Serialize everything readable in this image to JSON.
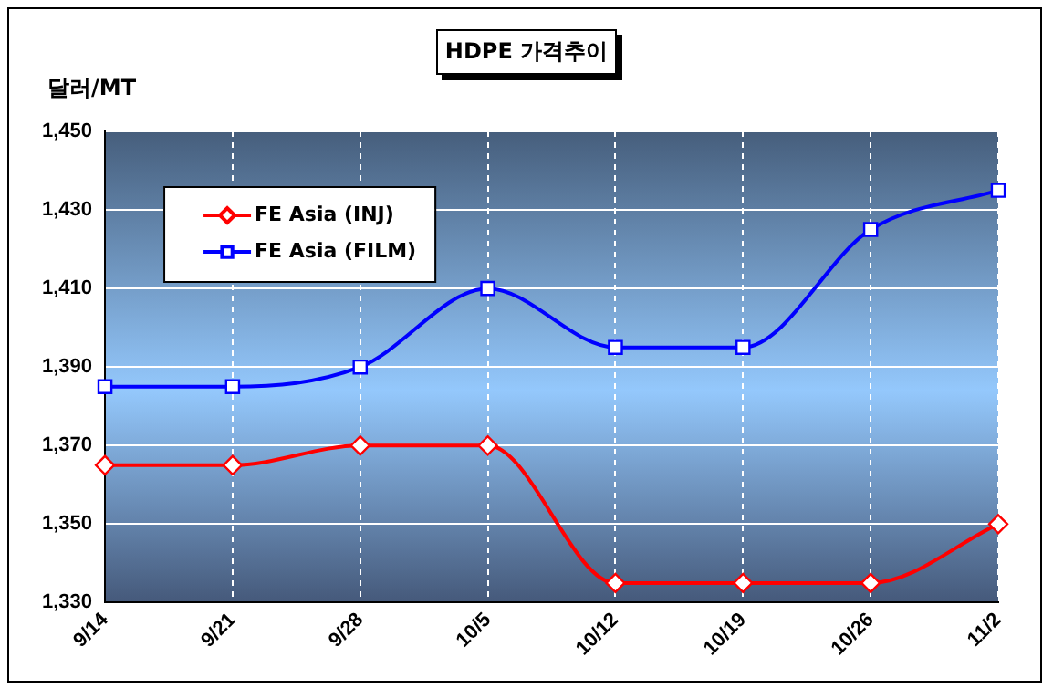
{
  "chart_data": {
    "type": "line",
    "title": "HDPE 가격추이",
    "ylabel": "달러/MT",
    "categories": [
      "9/14",
      "9/21",
      "9/28",
      "10/5",
      "10/12",
      "10/19",
      "10/26",
      "11/2"
    ],
    "series": [
      {
        "name": "FE Asia (INJ)",
        "color": "#ff0000",
        "marker": "diamond",
        "values": [
          1365,
          1365,
          1370,
          1370,
          1335,
          1335,
          1335,
          1350
        ]
      },
      {
        "name": "FE Asia (FILM)",
        "color": "#0000ff",
        "marker": "square",
        "values": [
          1385,
          1385,
          1390,
          1410,
          1395,
          1395,
          1425,
          1435
        ]
      }
    ],
    "ylim": [
      1330,
      1450
    ],
    "yticks": [
      {
        "value": 1330,
        "label": "1,330"
      },
      {
        "value": 1350,
        "label": "1,350"
      },
      {
        "value": 1370,
        "label": "1,370"
      },
      {
        "value": 1390,
        "label": "1,390"
      },
      {
        "value": 1410,
        "label": "1,410"
      },
      {
        "value": 1430,
        "label": "1,430"
      },
      {
        "value": 1450,
        "label": "1,450"
      }
    ],
    "grid": true,
    "legend": "top left",
    "line_style": "solid"
  }
}
